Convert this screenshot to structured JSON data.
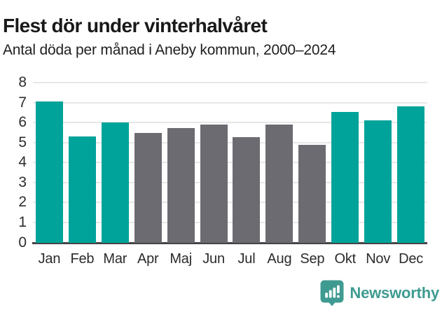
{
  "header": {
    "title": "Flest dör under vinterhalvåret",
    "subtitle": "Antal döda per månad i Aneby kommun, 2000–2024"
  },
  "chart_data": {
    "type": "bar",
    "title": "Flest dör under vinterhalvåret",
    "subtitle": "Antal döda per månad i Aneby kommun, 2000–2024",
    "categories": [
      "Jan",
      "Feb",
      "Mar",
      "Apr",
      "Maj",
      "Jun",
      "Jul",
      "Aug",
      "Sep",
      "Okt",
      "Nov",
      "Dec"
    ],
    "values": [
      7.04,
      5.32,
      6.0,
      5.48,
      5.72,
      5.92,
      5.28,
      5.92,
      4.88,
      6.52,
      6.12,
      6.8
    ],
    "bar_colors": [
      "#00a39a",
      "#00a39a",
      "#00a39a",
      "#6c6b71",
      "#6c6b71",
      "#6c6b71",
      "#6c6b71",
      "#6c6b71",
      "#6c6b71",
      "#00a39a",
      "#00a39a",
      "#00a39a"
    ],
    "highlight_color": "#00a39a",
    "muted_color": "#6c6b71",
    "xlabel": "",
    "ylabel": "",
    "ylim": [
      0,
      8
    ],
    "yticks": [
      0,
      1,
      2,
      3,
      4,
      5,
      6,
      7,
      8
    ],
    "grid": true,
    "legend": "none",
    "gridline_color": "#e7e7e7",
    "axis_color": "#454548"
  },
  "footer": {
    "brand": "Newsworthy",
    "brand_color": "#3f9b91",
    "logo_icon": "newsworthy-bubble-chart-icon"
  }
}
